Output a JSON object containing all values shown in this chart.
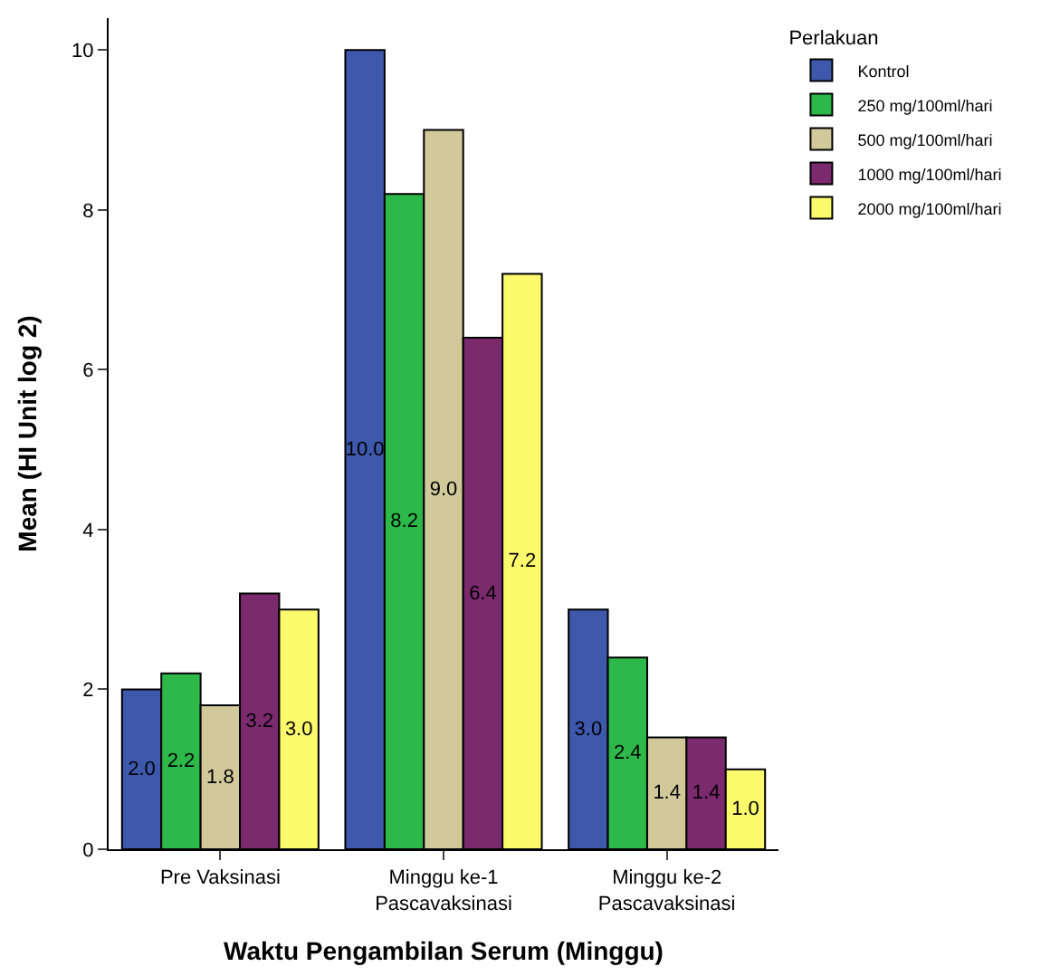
{
  "chart_data": {
    "type": "bar",
    "xlabel": "Waktu Pengambilan Serum (Minggu)",
    "ylabel": "Mean (HI Unit log 2)",
    "legend_title": "Perlakuan",
    "categories": [
      "Pre Vaksinasi",
      "Minggu ke-1\nPascavaksinasi",
      "Minggu ke-2\nPascavaksinasi"
    ],
    "series": [
      {
        "name": "Kontrol",
        "color": "#3e58ac",
        "values": [
          2.0,
          10.0,
          3.0
        ],
        "value_labels": [
          "2.0",
          "10.0",
          "3.0"
        ]
      },
      {
        "name": "250 mg/100ml/hari",
        "color": "#2db84a",
        "values": [
          2.2,
          8.2,
          2.4
        ],
        "value_labels": [
          "2.2",
          "8.2",
          "2.4"
        ]
      },
      {
        "name": "500 mg/100ml/hari",
        "color": "#d2c99b",
        "values": [
          1.8,
          9.0,
          1.4
        ],
        "value_labels": [
          "1.8",
          "9.0",
          "1.4"
        ]
      },
      {
        "name": "1000 mg/100ml/hari",
        "color": "#7b2a6e",
        "values": [
          3.2,
          6.4,
          1.4
        ],
        "value_labels": [
          "3.2",
          "6.4",
          "1.4"
        ]
      },
      {
        "name": "2000 mg/100ml/hari",
        "color": "#fbf96c",
        "values": [
          3.0,
          7.2,
          1.0
        ],
        "value_labels": [
          "3.0",
          "7.2",
          "1.0"
        ]
      }
    ],
    "ylim": [
      0,
      10.4
    ],
    "yticks": [
      0,
      2,
      4,
      6,
      8,
      10
    ],
    "legend": "top right"
  }
}
